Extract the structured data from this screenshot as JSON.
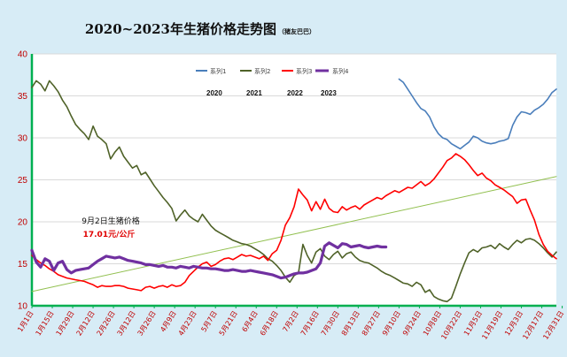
{
  "chart_data": {
    "type": "line",
    "title": "2020~2023年生猪价格走势图",
    "subtitle": "（猪友巴巴）",
    "ylim": [
      10,
      40
    ],
    "yticks": [
      10,
      15,
      20,
      25,
      30,
      35,
      40
    ],
    "xlim": [
      1,
      361
    ],
    "xtick_labels": [
      "1月1日",
      "1月15日",
      "1月29日",
      "2月12日",
      "2月26日",
      "3月12日",
      "3月26日",
      "4月9日",
      "4月23日",
      "5月7日",
      "5月21日",
      "6月4日",
      "6月18日",
      "7月2日",
      "7月16日",
      "7月30日",
      "8月13日",
      "8月27日",
      "9月10日",
      "9月24日",
      "10月8日",
      "10月22日",
      "11月5日",
      "11月19日",
      "12月3日",
      "12月17日",
      "12月31日"
    ],
    "xtick_days": [
      1,
      15,
      29,
      43,
      57,
      71,
      85,
      99,
      113,
      127,
      141,
      155,
      169,
      183,
      197,
      211,
      225,
      239,
      253,
      267,
      281,
      295,
      309,
      323,
      337,
      351,
      365
    ],
    "legend": {
      "entries": [
        "系列1",
        "系列2",
        "系列3",
        "系列4"
      ],
      "colors": [
        "#4a7ebb",
        "#4f6228",
        "#ff0000",
        "#7030a0"
      ],
      "placement": "top-center"
    },
    "year_labels": [
      "2020",
      "2021",
      "2022",
      "2023"
    ],
    "annotation": {
      "line1": "9月2日生猪价格",
      "line2": "17.01元/公斤"
    },
    "series": [
      {
        "name": "系列1",
        "color": "#4a7ebb",
        "x": [
          253,
          256,
          259,
          262,
          265,
          268,
          271,
          274,
          277,
          280,
          283,
          286,
          289,
          292,
          295,
          298,
          301,
          304,
          307,
          310,
          313,
          316,
          319,
          322,
          325,
          328,
          331,
          334,
          337,
          340,
          343,
          346,
          349,
          352,
          355,
          358,
          361
        ],
        "y": [
          37.0,
          36.6,
          35.8,
          35.0,
          34.2,
          33.5,
          33.2,
          32.5,
          31.3,
          30.5,
          30.0,
          29.8,
          29.3,
          29.0,
          28.7,
          29.1,
          29.5,
          30.2,
          30.0,
          29.6,
          29.4,
          29.3,
          29.4,
          29.6,
          29.7,
          29.9,
          31.5,
          32.5,
          33.1,
          33.0,
          32.8,
          33.3,
          33.6,
          34.0,
          34.6,
          35.4,
          35.8
        ]
      },
      {
        "name": "系列2",
        "color": "#4f6228",
        "x": [
          1,
          4,
          7,
          10,
          13,
          16,
          19,
          22,
          25,
          28,
          31,
          34,
          37,
          40,
          43,
          46,
          49,
          52,
          55,
          58,
          61,
          64,
          67,
          70,
          73,
          76,
          79,
          82,
          85,
          88,
          91,
          94,
          97,
          100,
          103,
          106,
          109,
          112,
          115,
          118,
          121,
          124,
          127,
          130,
          133,
          136,
          139,
          142,
          145,
          148,
          151,
          154,
          157,
          160,
          163,
          166,
          169,
          172,
          175,
          178,
          181,
          184,
          187,
          190,
          193,
          196,
          199,
          202,
          205,
          208,
          211,
          214,
          217,
          220,
          223,
          226,
          229,
          232,
          235,
          238,
          241,
          244,
          247,
          250,
          253,
          256,
          259,
          262,
          265,
          268,
          271,
          274,
          277,
          280,
          283,
          286,
          289,
          292,
          295,
          298,
          301,
          304,
          307,
          310,
          313,
          316,
          319,
          322,
          325,
          328,
          331,
          334,
          337,
          340,
          343,
          346,
          349,
          352,
          355,
          358,
          361
        ],
        "y": [
          36.0,
          36.8,
          36.4,
          35.6,
          36.8,
          36.2,
          35.5,
          34.5,
          33.7,
          32.6,
          31.6,
          31.0,
          30.5,
          29.8,
          31.4,
          30.2,
          29.8,
          29.3,
          27.5,
          28.3,
          28.9,
          27.8,
          27.1,
          26.4,
          26.7,
          25.6,
          25.9,
          25.1,
          24.3,
          23.6,
          22.9,
          22.3,
          21.6,
          20.1,
          20.8,
          21.4,
          20.7,
          20.3,
          20.0,
          20.9,
          20.2,
          19.5,
          19.0,
          18.7,
          18.4,
          18.1,
          17.8,
          17.6,
          17.4,
          17.3,
          17.1,
          16.8,
          16.5,
          16.1,
          15.6,
          15.3,
          14.8,
          14.2,
          13.4,
          12.8,
          13.6,
          13.9,
          17.3,
          16.0,
          15.1,
          16.4,
          16.8,
          15.9,
          15.5,
          16.1,
          16.5,
          15.7,
          16.2,
          16.4,
          15.8,
          15.4,
          15.2,
          15.1,
          14.8,
          14.5,
          14.1,
          13.8,
          13.6,
          13.3,
          13.0,
          12.7,
          12.6,
          12.3,
          12.8,
          12.5,
          11.6,
          11.9,
          11.1,
          10.8,
          10.6,
          10.5,
          10.9,
          12.3,
          13.8,
          15.1,
          16.3,
          16.7,
          16.4,
          16.9,
          17.0,
          17.2,
          16.8,
          17.4,
          17.0,
          16.7,
          17.3,
          17.8,
          17.5,
          17.9,
          18.0,
          17.8,
          17.4,
          16.9,
          16.3,
          15.8,
          16.4
        ]
      },
      {
        "name": "系列3",
        "color": "#ff0000",
        "x": [
          1,
          4,
          7,
          10,
          13,
          16,
          19,
          22,
          25,
          28,
          31,
          34,
          37,
          40,
          43,
          46,
          49,
          52,
          55,
          58,
          61,
          64,
          67,
          70,
          73,
          76,
          79,
          82,
          85,
          88,
          91,
          94,
          97,
          100,
          103,
          106,
          109,
          112,
          115,
          118,
          121,
          124,
          127,
          130,
          133,
          136,
          139,
          142,
          145,
          148,
          151,
          154,
          157,
          160,
          163,
          166,
          169,
          172,
          175,
          178,
          181,
          184,
          187,
          190,
          193,
          196,
          199,
          202,
          205,
          208,
          211,
          214,
          217,
          220,
          223,
          226,
          229,
          232,
          235,
          238,
          241,
          244,
          247,
          250,
          253,
          256,
          259,
          262,
          265,
          268,
          271,
          274,
          277,
          280,
          283,
          286,
          289,
          292,
          295,
          298,
          301,
          304,
          307,
          310,
          313,
          316,
          319,
          322,
          325,
          328,
          331,
          334,
          337,
          340,
          343,
          346,
          349,
          352,
          355,
          358,
          361
        ],
        "y": [
          16.0,
          15.5,
          15.1,
          14.8,
          14.4,
          14.1,
          13.7,
          13.5,
          13.3,
          13.2,
          13.1,
          13.0,
          12.9,
          12.7,
          12.5,
          12.2,
          12.4,
          12.3,
          12.3,
          12.4,
          12.4,
          12.3,
          12.1,
          12.0,
          11.9,
          11.8,
          12.2,
          12.3,
          12.1,
          12.3,
          12.4,
          12.2,
          12.5,
          12.3,
          12.4,
          12.8,
          13.6,
          14.1,
          14.6,
          15.0,
          15.2,
          14.7,
          14.9,
          15.3,
          15.6,
          15.7,
          15.5,
          15.8,
          16.1,
          15.9,
          16.0,
          15.8,
          15.6,
          15.9,
          15.4,
          16.2,
          16.6,
          17.8,
          19.6,
          20.5,
          21.8,
          23.9,
          23.2,
          22.6,
          21.3,
          22.4,
          21.5,
          22.7,
          21.6,
          21.2,
          21.1,
          21.8,
          21.4,
          21.7,
          21.9,
          21.5,
          22.0,
          22.3,
          22.6,
          22.9,
          22.7,
          23.1,
          23.4,
          23.7,
          23.5,
          23.8,
          24.1,
          24.0,
          24.4,
          24.8,
          24.3,
          24.6,
          25.1,
          25.8,
          26.5,
          27.3,
          27.6,
          28.1,
          27.8,
          27.4,
          26.8,
          26.1,
          25.5,
          25.8,
          25.2,
          24.9,
          24.4,
          24.1,
          23.8,
          23.4,
          23.0,
          22.2,
          22.6,
          22.7,
          21.4,
          20.2,
          18.5,
          17.3,
          16.5,
          16.0,
          15.6
        ]
      },
      {
        "name": "系列4",
        "color": "#7030a0",
        "x": [
          1,
          4,
          7,
          10,
          13,
          16,
          19,
          22,
          25,
          28,
          31,
          34,
          37,
          40,
          43,
          46,
          49,
          52,
          55,
          58,
          61,
          64,
          67,
          70,
          73,
          76,
          79,
          82,
          85,
          88,
          91,
          94,
          97,
          100,
          103,
          106,
          109,
          112,
          115,
          118,
          121,
          124,
          127,
          130,
          133,
          136,
          139,
          142,
          145,
          148,
          151,
          154,
          157,
          160,
          163,
          166,
          169,
          172,
          175,
          178,
          181,
          184,
          187,
          190,
          193,
          196,
          199,
          202,
          205,
          208,
          211,
          214,
          217,
          220,
          223,
          226,
          229,
          232,
          235,
          238,
          241,
          244
        ],
        "y": [
          16.6,
          15.2,
          14.6,
          15.6,
          15.3,
          14.2,
          15.1,
          15.3,
          14.3,
          13.9,
          14.2,
          14.3,
          14.4,
          14.5,
          14.9,
          15.3,
          15.6,
          15.9,
          15.8,
          15.7,
          15.8,
          15.6,
          15.4,
          15.3,
          15.2,
          15.1,
          14.9,
          14.9,
          14.8,
          14.7,
          14.8,
          14.6,
          14.6,
          14.5,
          14.7,
          14.6,
          14.5,
          14.7,
          14.6,
          14.5,
          14.5,
          14.4,
          14.4,
          14.3,
          14.2,
          14.2,
          14.3,
          14.2,
          14.1,
          14.1,
          14.2,
          14.1,
          14.0,
          13.9,
          13.8,
          13.7,
          13.5,
          13.3,
          13.4,
          13.6,
          13.8,
          13.9,
          13.9,
          14.0,
          14.2,
          14.4,
          15.1,
          17.1,
          17.5,
          17.2,
          16.9,
          17.4,
          17.3,
          17.0,
          17.1,
          17.2,
          17.0,
          16.9,
          17.0,
          17.1,
          17.0,
          17.0
        ]
      },
      {
        "name": "",
        "color": "#92c050",
        "x": [
          1,
          361
        ],
        "y": [
          11.7,
          25.4
        ]
      }
    ]
  }
}
